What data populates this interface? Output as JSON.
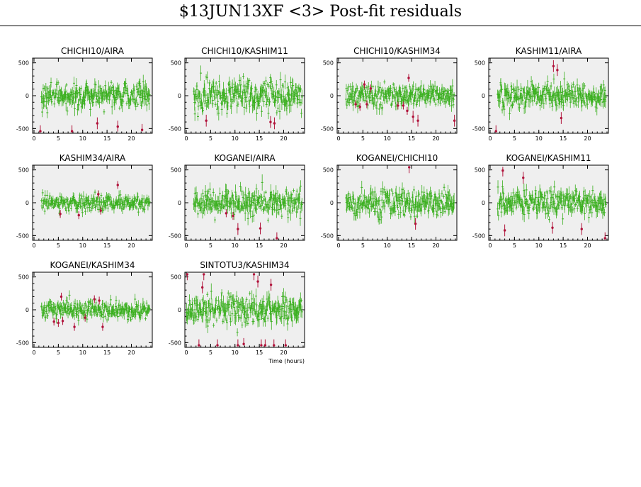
{
  "page": {
    "title": "$13JUN13XF <3> Post-fit residuals",
    "time_axis_label": "Time (hours)"
  },
  "colors": {
    "panel_background": "#efefef",
    "good_points": "#3cb021",
    "flagged_points": "#b0123a",
    "frame": "#000000"
  },
  "chart_data": [
    {
      "type": "scatter",
      "title": "CHICHI10/AIRA",
      "xlim": [
        0,
        24
      ],
      "ylim": [
        -550,
        550
      ],
      "xticks": [
        0,
        5,
        10,
        15,
        20
      ],
      "yticks": [
        -500,
        0,
        500
      ],
      "x_range": [
        1.5,
        23.8
      ],
      "spread": 95,
      "flagged": [
        [
          1.3,
          -560
        ],
        [
          7.8,
          -560
        ],
        [
          13.0,
          -420
        ],
        [
          17.2,
          -470
        ],
        [
          22.2,
          -520
        ]
      ]
    },
    {
      "type": "scatter",
      "title": "CHICHI10/KASHIM11",
      "xlim": [
        0,
        24
      ],
      "ylim": [
        -550,
        550
      ],
      "xticks": [
        0,
        5,
        10,
        15,
        20
      ],
      "yticks": [
        -500,
        0,
        500
      ],
      "x_range": [
        1.5,
        23.8
      ],
      "spread": 105,
      "flagged": [
        [
          4.1,
          -380
        ],
        [
          17.3,
          -400
        ],
        [
          18.1,
          -420
        ]
      ]
    },
    {
      "type": "scatter",
      "title": "CHICHI10/KASHIM34",
      "xlim": [
        0,
        24
      ],
      "ylim": [
        -550,
        550
      ],
      "xticks": [
        0,
        5,
        10,
        15,
        20
      ],
      "yticks": [
        -500,
        0,
        500
      ],
      "x_range": [
        1.5,
        23.8
      ],
      "spread": 80,
      "flagged": [
        [
          3.5,
          -130
        ],
        [
          4.4,
          -170
        ],
        [
          5.3,
          170
        ],
        [
          5.8,
          -130
        ],
        [
          6.6,
          110
        ],
        [
          12.2,
          -150
        ],
        [
          13.3,
          -150
        ],
        [
          14.1,
          -230
        ],
        [
          14.4,
          270
        ],
        [
          15.3,
          -320
        ],
        [
          16.3,
          -380
        ],
        [
          23.8,
          -380
        ]
      ]
    },
    {
      "type": "scatter",
      "title": "KASHIM11/AIRA",
      "xlim": [
        0,
        24
      ],
      "ylim": [
        -550,
        550
      ],
      "xticks": [
        0,
        5,
        10,
        15,
        20
      ],
      "yticks": [
        -500,
        0,
        500
      ],
      "x_range": [
        1.5,
        23.8
      ],
      "spread": 95,
      "flagged": [
        [
          1.2,
          -560
        ],
        [
          13.0,
          450
        ],
        [
          13.8,
          390
        ],
        [
          14.6,
          -340
        ]
      ]
    },
    {
      "type": "scatter",
      "title": "KASHIM34/AIRA",
      "xlim": [
        0,
        24
      ],
      "ylim": [
        -550,
        550
      ],
      "xticks": [
        0,
        5,
        10,
        15,
        20
      ],
      "yticks": [
        -500,
        0,
        500
      ],
      "x_range": [
        1.5,
        23.8
      ],
      "spread": 55,
      "flagged": [
        [
          5.4,
          -170
        ],
        [
          9.2,
          -190
        ],
        [
          13.2,
          130
        ],
        [
          13.7,
          -120
        ],
        [
          17.2,
          270
        ]
      ]
    },
    {
      "type": "scatter",
      "title": "KOGANEI/AIRA",
      "xlim": [
        0,
        24
      ],
      "ylim": [
        -550,
        550
      ],
      "xticks": [
        0,
        5,
        10,
        15,
        20
      ],
      "yticks": [
        -500,
        0,
        500
      ],
      "x_range": [
        1.5,
        23.8
      ],
      "spread": 105,
      "flagged": [
        [
          8.2,
          -160
        ],
        [
          9.6,
          -200
        ],
        [
          10.6,
          -400
        ],
        [
          15.2,
          -390
        ],
        [
          18.6,
          -560
        ]
      ]
    },
    {
      "type": "scatter",
      "title": "KOGANEI/CHICHI10",
      "xlim": [
        0,
        24
      ],
      "ylim": [
        -550,
        550
      ],
      "xticks": [
        0,
        5,
        10,
        15,
        20
      ],
      "yticks": [
        -500,
        0,
        500
      ],
      "x_range": [
        1.5,
        23.8
      ],
      "spread": 105,
      "flagged": [
        [
          14.5,
          560
        ],
        [
          15.8,
          -320
        ]
      ]
    },
    {
      "type": "scatter",
      "title": "KOGANEI/KASHIM11",
      "xlim": [
        0,
        24
      ],
      "ylim": [
        -550,
        550
      ],
      "xticks": [
        0,
        5,
        10,
        15,
        20
      ],
      "yticks": [
        -500,
        0,
        500
      ],
      "x_range": [
        1.5,
        23.8
      ],
      "spread": 95,
      "flagged": [
        [
          2.6,
          490
        ],
        [
          3.0,
          -420
        ],
        [
          6.8,
          380
        ],
        [
          12.8,
          -380
        ],
        [
          18.8,
          -400
        ],
        [
          23.6,
          -560
        ]
      ]
    },
    {
      "type": "scatter",
      "title": "KOGANEI/KASHIM34",
      "xlim": [
        0,
        24
      ],
      "ylim": [
        -550,
        550
      ],
      "xticks": [
        0,
        5,
        10,
        15,
        20
      ],
      "yticks": [
        -500,
        0,
        500
      ],
      "x_range": [
        1.5,
        23.8
      ],
      "spread": 60,
      "flagged": [
        [
          4.1,
          -180
        ],
        [
          5.0,
          -200
        ],
        [
          5.6,
          200
        ],
        [
          5.9,
          -170
        ],
        [
          8.3,
          -260
        ],
        [
          10.5,
          -120
        ],
        [
          12.4,
          160
        ],
        [
          13.4,
          140
        ],
        [
          14.1,
          -260
        ]
      ]
    },
    {
      "type": "scatter",
      "title": "SINTOTU3/KASHIM34",
      "xlim": [
        0,
        24
      ],
      "ylim": [
        -550,
        550
      ],
      "xticks": [
        0,
        5,
        10,
        15,
        20
      ],
      "yticks": [
        -500,
        0,
        500
      ],
      "x_range": [
        0,
        23.8
      ],
      "spread": 115,
      "flagged": [
        [
          0.2,
          560
        ],
        [
          2.6,
          -560
        ],
        [
          3.3,
          340
        ],
        [
          3.6,
          560
        ],
        [
          6.4,
          -560
        ],
        [
          10.6,
          -560
        ],
        [
          11.8,
          -520
        ],
        [
          13.9,
          580
        ],
        [
          14.7,
          430
        ],
        [
          15.4,
          -560
        ],
        [
          16.2,
          -560
        ],
        [
          17.4,
          380
        ],
        [
          18.0,
          -560
        ],
        [
          20.4,
          -560
        ]
      ]
    }
  ]
}
